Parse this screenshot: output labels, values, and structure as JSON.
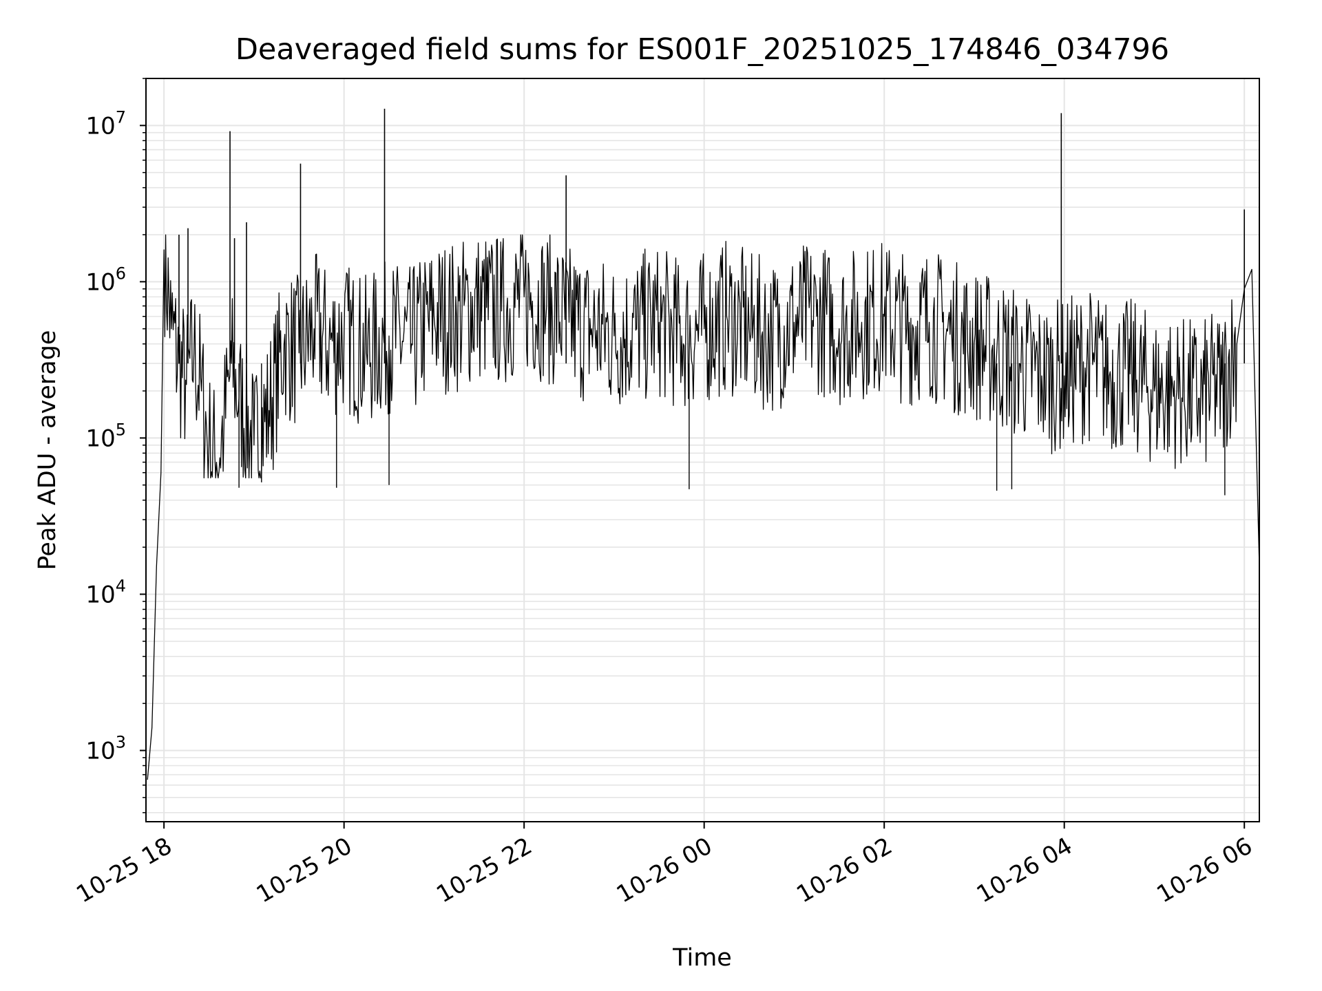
{
  "chart_data": {
    "type": "line",
    "title": "Deaveraged field sums for ES001F_20251025_174846_034796",
    "xlabel": "Time",
    "ylabel": "Peak ADU - average",
    "yscale": "log",
    "ylim": [
      350,
      20000000
    ],
    "xlim": [
      "2025-10-25 17:48",
      "2025-10-26 06:10"
    ],
    "grid": true,
    "line_color": "#000000",
    "grid_color": "#e5e5e5",
    "x_ticks": [
      {
        "value": "2025-10-25 18:00",
        "label": "10-25 18"
      },
      {
        "value": "2025-10-25 20:00",
        "label": "10-25 20"
      },
      {
        "value": "2025-10-25 22:00",
        "label": "10-25 22"
      },
      {
        "value": "2025-10-26 00:00",
        "label": "10-26 00"
      },
      {
        "value": "2025-10-26 02:00",
        "label": "10-26 02"
      },
      {
        "value": "2025-10-26 04:00",
        "label": "10-26 04"
      },
      {
        "value": "2025-10-26 06:00",
        "label": "10-26 06"
      }
    ],
    "y_ticks": [
      {
        "value": 1000,
        "base": "10",
        "exp": "3"
      },
      {
        "value": 10000,
        "base": "10",
        "exp": "4"
      },
      {
        "value": 100000,
        "base": "10",
        "exp": "5"
      },
      {
        "value": 1000000,
        "base": "10",
        "exp": "6"
      },
      {
        "value": 10000000,
        "base": "10",
        "exp": "7"
      }
    ],
    "series": [
      {
        "x": [
          "2025-10-25 17:49",
          "2025-10-25 17:52",
          "2025-10-25 17:55",
          "2025-10-25 17:58",
          "2025-10-25 18:00",
          "2025-10-25 18:05",
          "2025-10-25 18:10",
          "2025-10-25 18:15",
          "2025-10-25 18:20",
          "2025-10-25 18:25",
          "2025-10-25 18:30",
          "2025-10-25 18:35",
          "2025-10-25 18:40",
          "2025-10-25 18:45",
          "2025-10-25 18:50",
          "2025-10-25 19:00",
          "2025-10-25 19:10",
          "2025-10-25 19:20",
          "2025-10-25 19:30",
          "2025-10-25 19:40",
          "2025-10-25 19:50",
          "2025-10-25 20:00",
          "2025-10-25 20:15",
          "2025-10-25 20:30",
          "2025-10-25 20:45",
          "2025-10-25 21:00",
          "2025-10-25 21:15",
          "2025-10-25 21:30",
          "2025-10-25 21:45",
          "2025-10-25 22:00",
          "2025-10-25 22:15",
          "2025-10-25 22:30",
          "2025-10-25 22:45",
          "2025-10-25 23:00",
          "2025-10-25 23:15",
          "2025-10-25 23:30",
          "2025-10-25 23:45",
          "2025-10-26 00:00",
          "2025-10-26 00:15",
          "2025-10-26 00:30",
          "2025-10-26 00:45",
          "2025-10-26 01:00",
          "2025-10-26 01:15",
          "2025-10-26 01:30",
          "2025-10-26 01:45",
          "2025-10-26 02:00",
          "2025-10-26 02:15",
          "2025-10-26 02:30",
          "2025-10-26 02:45",
          "2025-10-26 03:00",
          "2025-10-26 03:15",
          "2025-10-26 03:30",
          "2025-10-26 03:45",
          "2025-10-26 04:00",
          "2025-10-26 04:15",
          "2025-10-26 04:30",
          "2025-10-26 04:45",
          "2025-10-26 05:00",
          "2025-10-26 05:15",
          "2025-10-26 05:30",
          "2025-10-26 05:45",
          "2025-10-26 05:55",
          "2025-10-26 06:00",
          "2025-10-26 06:05",
          "2025-10-26 06:10"
        ],
        "y": [
          650,
          1400,
          15000,
          60000,
          1600000,
          500000,
          300000,
          220000,
          350000,
          200000,
          90000,
          70000,
          120000,
          300000,
          180000,
          90000,
          150000,
          400000,
          350000,
          500000,
          400000,
          450000,
          350000,
          450000,
          400000,
          600000,
          600000,
          700000,
          650000,
          800000,
          700000,
          550000,
          500000,
          450000,
          500000,
          550000,
          450000,
          500000,
          600000,
          500000,
          450000,
          550000,
          600000,
          500000,
          550000,
          600000,
          500000,
          550000,
          450000,
          400000,
          350000,
          300000,
          250000,
          250000,
          300000,
          250000,
          250000,
          200000,
          200000,
          180000,
          220000,
          400000,
          900000,
          1200000,
          15000
        ]
      }
    ],
    "spikes": [
      {
        "x": "2025-10-25 18:44",
        "y": 9200000
      },
      {
        "x": "2025-10-25 19:31",
        "y": 5700000
      },
      {
        "x": "2025-10-25 20:27",
        "y": 12800000
      },
      {
        "x": "2025-10-25 22:28",
        "y": 4800000
      },
      {
        "x": "2025-10-26 03:58",
        "y": 12000000
      },
      {
        "x": "2025-10-26 06:00",
        "y": 2900000
      },
      {
        "x": "2025-10-25 18:47",
        "y": 1900000
      },
      {
        "x": "2025-10-25 18:55",
        "y": 2400000
      },
      {
        "x": "2025-10-25 18:16",
        "y": 2200000
      },
      {
        "x": "2025-10-25 18:10",
        "y": 2000000
      }
    ],
    "dips": [
      {
        "x": "2025-10-25 19:55",
        "y": 48000
      },
      {
        "x": "2025-10-25 20:30",
        "y": 50000
      },
      {
        "x": "2025-10-25 23:50",
        "y": 47000
      },
      {
        "x": "2025-10-26 03:15",
        "y": 46000
      },
      {
        "x": "2025-10-26 03:25",
        "y": 47000
      },
      {
        "x": "2025-10-26 05:47",
        "y": 43000
      },
      {
        "x": "2025-10-25 18:50",
        "y": 48000
      },
      {
        "x": "2025-10-25 19:05",
        "y": 52000
      }
    ]
  }
}
